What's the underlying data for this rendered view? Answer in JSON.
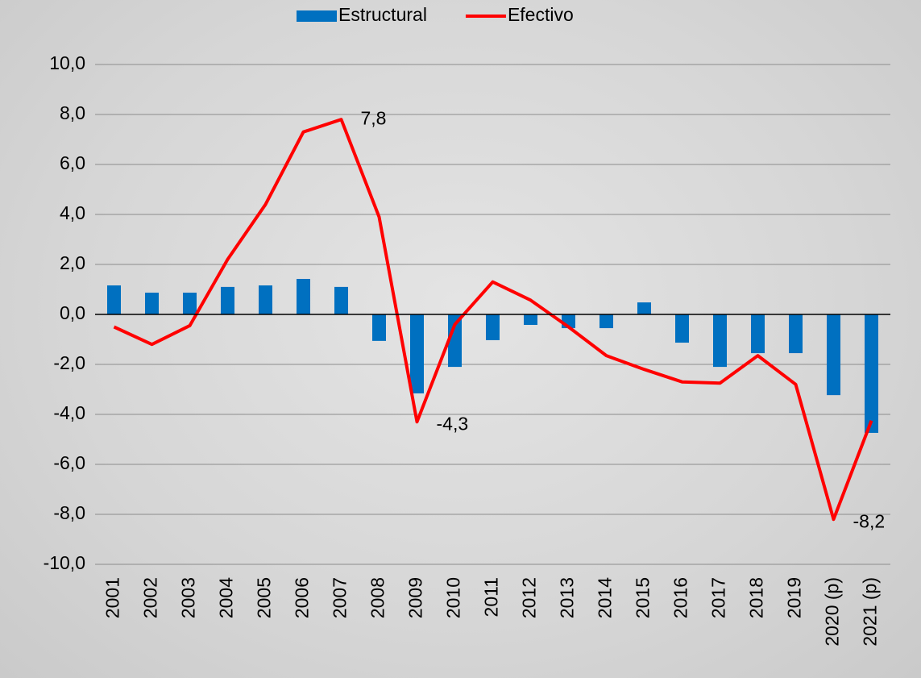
{
  "chart_data": {
    "type": "bar",
    "categories": [
      "2001",
      "2002",
      "2003",
      "2004",
      "2005",
      "2006",
      "2007",
      "2008",
      "2009",
      "2010",
      "2011",
      "2012",
      "2013",
      "2014",
      "2015",
      "2016",
      "2017",
      "2018",
      "2019",
      "2020 (p)",
      "2021 (p)"
    ],
    "series": [
      {
        "name": "Estructural",
        "type": "bar",
        "color": "#0070c0",
        "values": [
          1.16,
          0.87,
          0.87,
          1.1,
          1.16,
          1.42,
          1.1,
          -1.06,
          -3.16,
          -2.1,
          -1.03,
          -0.42,
          -0.55,
          -0.55,
          0.48,
          -1.13,
          -2.1,
          -1.55,
          -1.55,
          -3.23,
          -4.74
        ]
      },
      {
        "name": "Efectivo",
        "type": "line",
        "color": "#ff0000",
        "values": [
          -0.5,
          -1.2,
          -0.45,
          2.2,
          4.4,
          7.3,
          7.8,
          3.9,
          -4.3,
          -0.4,
          1.3,
          0.57,
          -0.5,
          -1.65,
          -2.2,
          -2.7,
          -2.75,
          -1.65,
          -2.8,
          -8.2,
          -4.25
        ],
        "value_labels": [
          null,
          null,
          null,
          null,
          null,
          null,
          "7,8",
          null,
          "-4,3",
          null,
          null,
          null,
          null,
          null,
          null,
          null,
          null,
          null,
          null,
          "-8,2",
          null
        ]
      }
    ],
    "ylim": [
      -10,
      10
    ],
    "yticks": [
      {
        "value": -10,
        "label": "-10,0"
      },
      {
        "value": -8,
        "label": "-8,0"
      },
      {
        "value": -6,
        "label": "-6,0"
      },
      {
        "value": -4,
        "label": "-4,0"
      },
      {
        "value": -2,
        "label": "-2,0"
      },
      {
        "value": 0,
        "label": "0,0"
      },
      {
        "value": 2,
        "label": "2,0"
      },
      {
        "value": 4,
        "label": "4,0"
      },
      {
        "value": 6,
        "label": "6,0"
      },
      {
        "value": 8,
        "label": "8,0"
      },
      {
        "value": 10,
        "label": "10,0"
      }
    ],
    "grid": true,
    "legend": "top"
  }
}
